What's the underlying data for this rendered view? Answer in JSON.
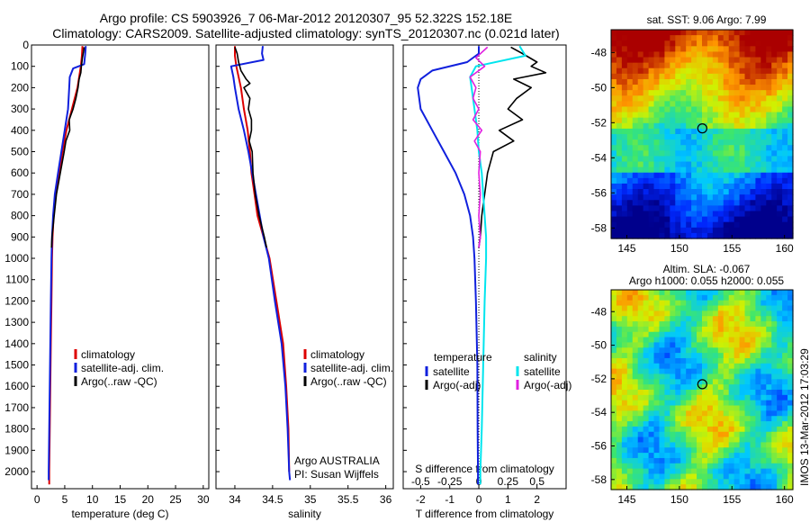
{
  "titles": {
    "line1": "Argo profile: CS 5903926_7 06-Mar-2012 20120307_95 52.322S 152.18E",
    "line2": "Climatology: CARS2009. Satellite-adjusted climatology: synTS_20120307.nc (0.021d later)"
  },
  "map_titles": {
    "sst": "sat. SST: 9.06 Argo: 7.99",
    "sla_1": "Altim. SLA: -0.067",
    "sla_2": "Argo h1000: 0.055 h2000: 0.055"
  },
  "stamp": "IMOS 13-Mar-2012 17:03:29",
  "annotations": {
    "owner": "Argo AUSTRALIA",
    "pi": "PI: Susan Wijffels"
  },
  "colors": {
    "climatology": "#dd0000",
    "satellite": "#1020dd",
    "argo": "#000000",
    "salinity_sat": "#00e5ee",
    "salinity_argo": "#e020e0"
  },
  "chart_data": [
    {
      "type": "line",
      "id": "temperature",
      "xlabel": "temperature (deg C)",
      "ylabel": "",
      "xlim": [
        -1,
        31
      ],
      "ylim": [
        2080,
        0
      ],
      "xticks": [
        "0",
        "5",
        "10",
        "15",
        "20",
        "25",
        "30"
      ],
      "yticks": [
        "0",
        "100",
        "200",
        "300",
        "400",
        "500",
        "600",
        "700",
        "800",
        "900",
        "1000",
        "1100",
        "1200",
        "1300",
        "1400",
        "1500",
        "1600",
        "1700",
        "1800",
        "1900",
        "2000"
      ],
      "legend": [
        "climatology",
        "satellite-adj. clim.",
        "Argo(..raw -QC)"
      ],
      "series": [
        {
          "name": "climatology",
          "y": [
            5,
            50,
            100,
            200,
            300,
            400,
            500,
            600,
            700,
            800,
            900,
            1000,
            1200,
            1400,
            1600,
            1800,
            2000,
            2060
          ],
          "values": [
            8.2,
            8.1,
            7.9,
            7.3,
            6.3,
            5.3,
            4.6,
            4.0,
            3.4,
            3.0,
            2.8,
            2.7,
            2.6,
            2.5,
            2.4,
            2.3,
            2.2,
            2.2
          ]
        },
        {
          "name": "satellite-adj. clim.",
          "y": [
            5,
            40,
            90,
            110,
            150,
            200,
            300,
            400,
            500,
            600,
            700,
            800,
            900,
            1000,
            1200,
            1400,
            1600,
            1800,
            2000,
            2040
          ],
          "values": [
            8.8,
            8.7,
            8.5,
            6.5,
            5.9,
            5.8,
            5.6,
            5.0,
            4.4,
            3.8,
            3.2,
            2.9,
            2.7,
            2.6,
            2.5,
            2.4,
            2.3,
            2.2,
            2.1,
            2.1
          ]
        },
        {
          "name": "Argo(..raw -QC)",
          "y": [
            10,
            30,
            60,
            100,
            130,
            160,
            200,
            250,
            300,
            350,
            400,
            450,
            500,
            600,
            700,
            800,
            900,
            950
          ],
          "values": [
            8.5,
            8.4,
            8.2,
            8.0,
            7.9,
            7.6,
            7.4,
            7.0,
            6.5,
            5.8,
            5.9,
            5.2,
            4.9,
            4.2,
            3.5,
            3.1,
            2.7,
            2.6
          ]
        }
      ]
    },
    {
      "type": "line",
      "id": "salinity",
      "xlabel": "salinity",
      "ylabel": "",
      "xlim": [
        33.75,
        36.1
      ],
      "ylim": [
        2080,
        0
      ],
      "xticks": [
        "34",
        "34.5",
        "35",
        "35.5",
        "36"
      ],
      "legend": [
        "climatology",
        "satellite-adj. clim.",
        "Argo(..raw -QC)"
      ],
      "series": [
        {
          "name": "climatology",
          "y": [
            5,
            50,
            100,
            200,
            300,
            400,
            500,
            600,
            700,
            800,
            900,
            1000,
            1200,
            1400,
            1600,
            1800,
            2000
          ],
          "values": [
            34.0,
            34.0,
            34.02,
            34.08,
            34.12,
            34.17,
            34.2,
            34.22,
            34.26,
            34.3,
            34.38,
            34.46,
            34.55,
            34.64,
            34.68,
            34.71,
            34.72
          ]
        },
        {
          "name": "satellite-adj. clim.",
          "y": [
            5,
            40,
            70,
            100,
            150,
            200,
            300,
            400,
            500,
            600,
            700,
            800,
            900,
            1000,
            1200,
            1400,
            1600,
            1800,
            2000,
            2040
          ],
          "values": [
            34.37,
            34.36,
            34.38,
            33.95,
            33.98,
            34.0,
            34.05,
            34.12,
            34.18,
            34.23,
            34.28,
            34.33,
            34.38,
            34.45,
            34.53,
            34.62,
            34.67,
            34.7,
            34.72,
            34.73
          ]
        },
        {
          "name": "Argo(..raw -QC)",
          "y": [
            10,
            40,
            80,
            120,
            160,
            180,
            200,
            250,
            300,
            350,
            400,
            450,
            500,
            600,
            700,
            800,
            900,
            950
          ],
          "values": [
            34.0,
            34.03,
            34.05,
            34.08,
            34.15,
            34.2,
            34.12,
            34.2,
            34.18,
            34.22,
            34.22,
            34.19,
            34.23,
            34.24,
            34.27,
            34.32,
            34.39,
            34.42
          ]
        }
      ]
    },
    {
      "type": "line",
      "id": "difference",
      "xlabel": "T difference from climatology",
      "xlabel_top": "S difference from climatology",
      "xlim": [
        -2.6,
        3.0
      ],
      "ylim": [
        2080,
        0
      ],
      "xticks": [
        "-2",
        "-1",
        "0",
        "1",
        "2"
      ],
      "xticks_salinity": [
        "-0.5",
        "-0.25",
        "0",
        "0.25",
        "0.5"
      ],
      "legend_titles": [
        "temperature",
        "salinity"
      ],
      "legend": [
        "satellite",
        "Argo(-adj)",
        "satellite",
        "Argo(-adj)"
      ],
      "series": [
        {
          "name": "satellite",
          "group": "temperature",
          "y": [
            5,
            40,
            80,
            120,
            160,
            200,
            300,
            400,
            500,
            600,
            700,
            800,
            900,
            1000,
            1200,
            1500,
            1800,
            2000,
            2060
          ],
          "values": [
            0.0,
            0.0,
            -0.4,
            -1.6,
            -2.0,
            -2.1,
            -2.0,
            -1.6,
            -1.2,
            -0.8,
            -0.5,
            -0.3,
            -0.2,
            -0.15,
            -0.1,
            -0.05,
            -0.04,
            -0.03,
            -0.03
          ]
        },
        {
          "name": "Argo(-adj)",
          "group": "temperature",
          "y": [
            10,
            40,
            80,
            100,
            130,
            160,
            200,
            250,
            300,
            350,
            400,
            450,
            500,
            600,
            700,
            800,
            900,
            950
          ],
          "values": [
            1.1,
            1.5,
            2.0,
            1.8,
            2.3,
            1.2,
            1.8,
            1.3,
            1.0,
            1.5,
            0.7,
            1.2,
            0.5,
            0.3,
            0.2,
            0.1,
            0.05,
            0.0
          ]
        },
        {
          "name": "satellite",
          "group": "salinity",
          "y": [
            5,
            50,
            100,
            150,
            200,
            300,
            400,
            500,
            600,
            700,
            800,
            900,
            1000,
            1200,
            1500,
            1800,
            2000,
            2060
          ],
          "values": [
            1.4,
            1.6,
            -0.1,
            -0.3,
            -0.25,
            -0.15,
            -0.05,
            0.0,
            0.1,
            0.15,
            0.2,
            0.25,
            0.25,
            0.2,
            0.15,
            0.1,
            0.05,
            0.05
          ]
        },
        {
          "name": "Argo(-adj)",
          "group": "salinity",
          "y": [
            10,
            60,
            100,
            150,
            200,
            250,
            300,
            350,
            400,
            450,
            500,
            600,
            700,
            800,
            900,
            950
          ],
          "values": [
            0.3,
            -0.1,
            0.2,
            -0.3,
            -0.1,
            -0.2,
            0.0,
            -0.2,
            0.1,
            -0.15,
            0.05,
            0.0,
            0.05,
            0.0,
            0.05,
            0.0
          ]
        }
      ]
    },
    {
      "type": "heatmap",
      "id": "sst_map",
      "xticks": [
        "145",
        "150",
        "155",
        "160"
      ],
      "yticks": [
        "-48",
        "-50",
        "-52",
        "-54",
        "-56",
        "-58"
      ],
      "marker": {
        "lon": 152.18,
        "lat": -52.322
      }
    },
    {
      "type": "heatmap",
      "id": "sla_map",
      "xticks": [
        "145",
        "150",
        "155",
        "160"
      ],
      "yticks": [
        "-48",
        "-50",
        "-52",
        "-54",
        "-56",
        "-58"
      ],
      "marker": {
        "lon": 152.18,
        "lat": -52.322
      }
    }
  ]
}
